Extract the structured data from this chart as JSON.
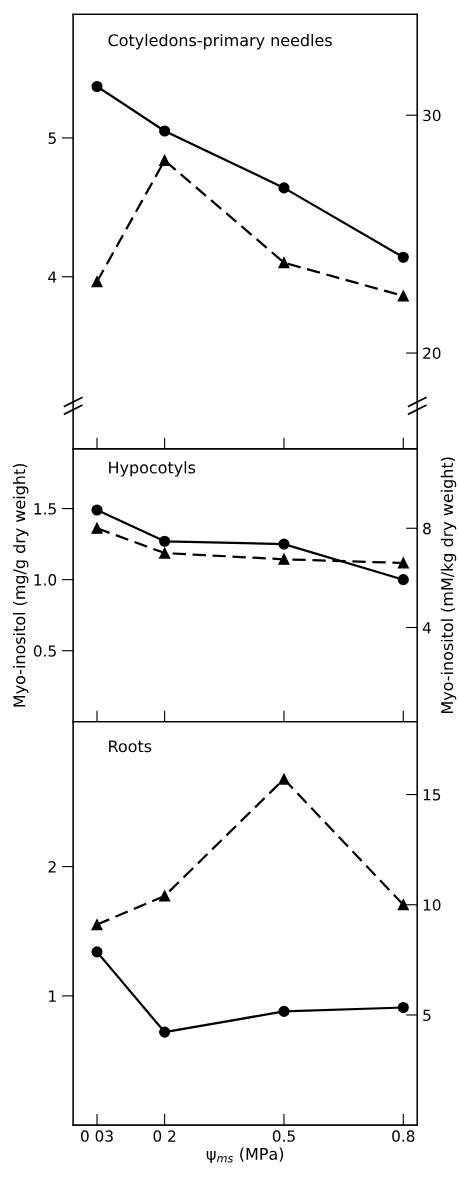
{
  "chart_data": [
    {
      "type": "line",
      "title": "Cotyledons-primary needles",
      "x": [
        0.03,
        0.2,
        0.5,
        0.8
      ],
      "xlim": [
        -0.03,
        0.835
      ],
      "xticks": [
        {
          "value": 0.03,
          "label": null
        },
        {
          "value": 0.2,
          "label": null
        },
        {
          "value": 0.5,
          "label": null
        },
        {
          "value": 0.8,
          "label": null
        }
      ],
      "ylim": [
        2.76,
        5.89
      ],
      "yticks": [
        5,
        4
      ],
      "y2lim": [
        15.97,
        34.24
      ],
      "y2ticks": [
        30,
        20
      ],
      "tick_labels": "y",
      "legend": false,
      "series": [
        {
          "color": "#000000",
          "values": [
            5.37,
            5.05,
            4.64,
            4.14
          ],
          "marker": "circle",
          "line_style": "solid"
        },
        {
          "color": "#000000",
          "values": [
            23.0,
            28.1,
            23.8,
            22.4
          ],
          "marker": "triangle",
          "line_style": "dashed",
          "axis": "y2"
        }
      ]
    },
    {
      "type": "line",
      "title": "Hypocotyls",
      "ylabel": "Myo-inositol (mg/g dry weight)",
      "y2label": "Myo-inositol (mM/kg dry weight)",
      "x": [
        0.03,
        0.2,
        0.5,
        0.8
      ],
      "xlim": [
        -0.03,
        0.835
      ],
      "xticks": [
        {
          "value": 0.03,
          "label": null
        },
        {
          "value": 0.2,
          "label": null
        },
        {
          "value": 0.5,
          "label": null
        },
        {
          "value": 0.8,
          "label": null
        }
      ],
      "ylim": [
        0,
        1.92
      ],
      "yticks": [
        1.5,
        {
          "value": 1.0,
          "label": "1.0"
        },
        0.5
      ],
      "y2lim": [
        0.2,
        11.2
      ],
      "y2ticks": [
        8,
        4
      ],
      "tick_labels": "y",
      "legend": false,
      "series": [
        {
          "color": "#000000",
          "values": [
            1.49,
            1.27,
            1.25,
            1.0
          ],
          "marker": "circle",
          "line_style": "solid"
        },
        {
          "color": "#000000",
          "values": [
            8.0,
            7.0,
            6.75,
            6.6
          ],
          "marker": "triangle",
          "line_style": "dashed",
          "axis": "y2"
        }
      ]
    },
    {
      "type": "line",
      "title": "Roots",
      "xlabel": "ψ$_{ms}$ (MPa)",
      "x": [
        0.03,
        0.2,
        0.5,
        0.8
      ],
      "xlim": [
        -0.03,
        0.835
      ],
      "xticks": [
        {
          "value": 0.03,
          "label": "0 03"
        },
        {
          "value": 0.2,
          "label": "0 2"
        },
        0.5,
        0.8
      ],
      "ylim": [
        0,
        3.12
      ],
      "yticks": [
        2,
        1
      ],
      "y2lim": [
        0,
        18.3
      ],
      "y2ticks": [
        15,
        10,
        5
      ],
      "legend": false,
      "series": [
        {
          "color": "#000000",
          "values": [
            1.34,
            0.72,
            0.88,
            0.91
          ],
          "marker": "circle",
          "line_style": "solid"
        },
        {
          "color": "#000000",
          "values": [
            9.1,
            10.4,
            15.7,
            10.0
          ],
          "marker": "triangle",
          "line_style": "dashed",
          "axis": "y2"
        }
      ]
    }
  ]
}
